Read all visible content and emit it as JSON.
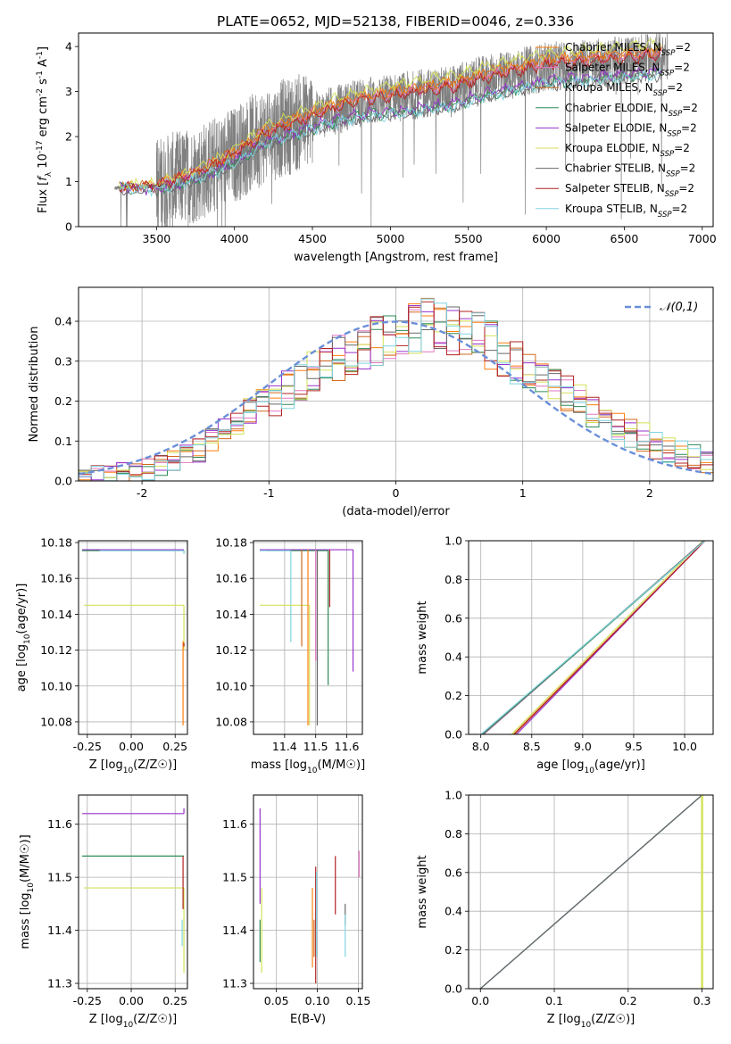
{
  "figure_title": "PLATE=0652, MJD=52138, FIBERID=0046, z=0.336",
  "colors": {
    "chabrier_miles": "#ff7f0e",
    "salpeter_miles": "#e377c2",
    "kroupa_miles": "#d2691e",
    "chabrier_elodie": "#2e8b57",
    "salpeter_elodie": "#9932cc",
    "kroupa_elodie": "#d4e157",
    "chabrier_stelib": "#696969",
    "salpeter_stelib": "#b22222",
    "kroupa_stelib": "#80d4e0",
    "data_spectrum": "#808080",
    "normal_curve": "#6a8fd8",
    "grid": "#b0b0b0"
  },
  "legend_entries": [
    "Chabrier MILES, N_SSP=2",
    "Salpeter MILES, N_SSP=2",
    "Kroupa MILES, N_SSP=2",
    "Chabrier ELODIE, N_SSP=2",
    "Salpeter ELODIE, N_SSP=2",
    "Kroupa ELODIE, N_SSP=2",
    "Chabrier STELIB, N_SSP=2",
    "Salpeter STELIB, N_SSP=2",
    "Kroupa STELIB, N_SSP=2"
  ],
  "chart_data": [
    {
      "id": "spectrum",
      "type": "line",
      "title": "PLATE=0652, MJD=52138, FIBERID=0046, z=0.336",
      "xlabel": "wavelength [Angstrom, rest frame]",
      "ylabel": "Flux [f_λ 10^-17 erg cm^-2 s^-1 A^-1]",
      "xlim": [
        3000,
        7070
      ],
      "ylim": [
        0,
        4.3
      ],
      "xticks": [
        3500,
        4000,
        4500,
        5000,
        5500,
        6000,
        6500,
        7000
      ],
      "yticks": [
        0,
        1,
        2,
        3,
        4
      ],
      "grid": false,
      "legend": "upper right",
      "data_range": [
        3230,
        6780
      ],
      "continuum": {
        "x": [
          3230,
          3300,
          3500,
          3700,
          3900,
          4000,
          4200,
          4400,
          4600,
          4800,
          5000,
          5200,
          5400,
          5600,
          5800,
          6000,
          6200,
          6400,
          6600,
          6780
        ],
        "y": [
          0.85,
          0.88,
          0.9,
          1.1,
          1.4,
          1.6,
          2.05,
          2.3,
          2.55,
          2.75,
          2.85,
          2.95,
          3.05,
          3.25,
          3.4,
          3.55,
          3.6,
          3.65,
          3.72,
          3.78
        ]
      },
      "model_offsets": [
        0.15,
        0.1,
        0.15,
        -0.35,
        -0.3,
        0.3,
        -0.4,
        0.05,
        -0.38
      ]
    },
    {
      "id": "residuals",
      "type": "step",
      "xlabel": "(data-model)/error",
      "ylabel": "Normed distribution",
      "xlim": [
        -2.5,
        2.5
      ],
      "ylim": [
        0,
        0.485
      ],
      "xticks": [
        -2,
        -1,
        0,
        1,
        2
      ],
      "yticks": [
        0.0,
        0.1,
        0.2,
        0.3,
        0.4
      ],
      "grid": true,
      "legend": "upper right",
      "gaussian_label": "N(0,1)",
      "bins": 50,
      "bin_edges": [
        -2.5,
        2.5
      ],
      "profile_centers": [
        -2.45,
        -2.35,
        -2.25,
        -2.15,
        -2.05,
        -1.95,
        -1.85,
        -1.75,
        -1.65,
        -1.55,
        -1.45,
        -1.35,
        -1.25,
        -1.15,
        -1.05,
        -0.95,
        -0.85,
        -0.75,
        -0.65,
        -0.55,
        -0.45,
        -0.35,
        -0.25,
        -0.15,
        -0.05,
        0.05,
        0.15,
        0.25,
        0.35,
        0.45,
        0.55,
        0.65,
        0.75,
        0.85,
        0.95,
        1.05,
        1.15,
        1.25,
        1.35,
        1.45,
        1.55,
        1.65,
        1.75,
        1.85,
        1.95,
        2.05,
        2.15,
        2.25,
        2.35,
        2.45
      ],
      "profile_values": [
        0.01,
        0.02,
        0.02,
        0.02,
        0.03,
        0.03,
        0.04,
        0.05,
        0.06,
        0.08,
        0.1,
        0.12,
        0.14,
        0.17,
        0.19,
        0.21,
        0.23,
        0.25,
        0.27,
        0.29,
        0.31,
        0.32,
        0.34,
        0.35,
        0.36,
        0.37,
        0.38,
        0.39,
        0.39,
        0.38,
        0.37,
        0.36,
        0.34,
        0.32,
        0.3,
        0.28,
        0.26,
        0.24,
        0.22,
        0.2,
        0.18,
        0.16,
        0.14,
        0.12,
        0.11,
        0.09,
        0.08,
        0.07,
        0.06,
        0.05
      ]
    },
    {
      "id": "age_vs_Z",
      "type": "errorbar",
      "xlabel": "Z [log10(Z/Z☉)]",
      "ylabel": "age [log10(age/yr)]",
      "xlim": [
        -0.3,
        0.32
      ],
      "ylim": [
        10.073,
        10.181
      ],
      "xticks": [
        -0.25,
        0.0,
        0.25
      ],
      "yticks": [
        10.08,
        10.1,
        10.12,
        10.14,
        10.16,
        10.18
      ],
      "grid": true,
      "points": [
        {
          "model": "Salpeter ELODIE",
          "x": 0.3,
          "xerr_left": 0.58,
          "y": 10.176,
          "yerr_low": 0.0,
          "yerr_high": 0.0
        },
        {
          "model": "Chabrier ELODIE",
          "x": 0.3,
          "xerr_left": 0.58,
          "y": 10.1755,
          "yerr_low": 0.001,
          "yerr_high": 0.0
        },
        {
          "model": "Kroupa STELIB",
          "x": 0.3,
          "xerr_left": 0.48,
          "y": 10.1755,
          "yerr_low": 0.002,
          "yerr_high": 0.0
        },
        {
          "model": "Kroupa ELODIE",
          "x": 0.3,
          "xerr_left": 0.57,
          "y": 10.145,
          "yerr_low": 0.025,
          "yerr_high": 0.0
        },
        {
          "model": "Chabrier MILES",
          "x": 0.295,
          "xerr_left": 0.0,
          "y": 10.125,
          "yerr_low": 0.047,
          "yerr_high": 0.0
        },
        {
          "model": "Salpeter STELIB",
          "x": 0.3,
          "xerr_left": 0.0,
          "y": 10.124,
          "yerr_low": 0.002,
          "yerr_high": 0.0
        }
      ]
    },
    {
      "id": "age_vs_mass",
      "type": "errorbar",
      "xlabel": "mass [log10(M/M☉)]",
      "ylabel": "",
      "xlim": [
        11.3,
        11.65
      ],
      "ylim": [
        10.073,
        10.181
      ],
      "xticks": [
        11.4,
        11.5,
        11.6
      ],
      "yticks": [
        10.08,
        10.1,
        10.12,
        10.14,
        10.16,
        10.18
      ],
      "grid": true,
      "points": [
        {
          "model": "Salpeter ELODIE",
          "x": 11.62,
          "xerr_left": 0.3,
          "y": 10.176,
          "yerr_low": 0.068
        },
        {
          "model": "Chabrier ELODIE",
          "x": 11.54,
          "xerr_left": 0.2,
          "y": 10.1755,
          "yerr_low": 0.075
        },
        {
          "model": "Kroupa STELIB",
          "x": 11.42,
          "xerr_left": 0.1,
          "y": 10.1755,
          "yerr_low": 0.051
        },
        {
          "model": "Kroupa ELODIE",
          "x": 11.48,
          "xerr_left": 0.16,
          "y": 10.145,
          "yerr_low": 0.067
        },
        {
          "model": "Chabrier MILES",
          "x": 11.475,
          "xerr_left": 0.0,
          "y": 10.176,
          "yerr_low": 0.098
        },
        {
          "model": "Salpeter STELIB",
          "x": 11.545,
          "xerr_left": 0.0,
          "y": 10.176,
          "yerr_low": 0.032
        },
        {
          "model": "Salpeter MILES",
          "x": 11.5,
          "xerr_left": 0.0,
          "y": 10.176,
          "yerr_low": 0.062
        },
        {
          "model": "Chabrier STELIB",
          "x": 11.505,
          "xerr_left": 0.0,
          "y": 10.176,
          "yerr_low": 0.098
        },
        {
          "model": "Kroupa MILES",
          "x": 11.455,
          "xerr_left": 0.0,
          "y": 10.176,
          "yerr_low": 0.054
        }
      ]
    },
    {
      "id": "mass_weight_vs_age",
      "type": "line",
      "xlabel": "age [log10(age/yr)]",
      "ylabel": "mass weight",
      "xlim": [
        7.88,
        10.28
      ],
      "ylim": [
        0.0,
        1.0
      ],
      "xticks": [
        8.0,
        8.5,
        9.0,
        9.5,
        10.0
      ],
      "yticks": [
        0.0,
        0.2,
        0.4,
        0.6,
        0.8,
        1.0
      ],
      "grid": true,
      "series": [
        {
          "model": "Chabrier MILES",
          "x": [
            8.02,
            10.19
          ],
          "y": [
            0.0,
            1.0
          ]
        },
        {
          "model": "Salpeter MILES",
          "x": [
            8.03,
            10.19
          ],
          "y": [
            0.0,
            1.0
          ]
        },
        {
          "model": "Kroupa MILES",
          "x": [
            8.32,
            10.2
          ],
          "y": [
            0.0,
            1.0
          ]
        },
        {
          "model": "Chabrier ELODIE",
          "x": [
            8.02,
            10.2
          ],
          "y": [
            0.0,
            1.0
          ]
        },
        {
          "model": "Salpeter ELODIE",
          "x": [
            8.35,
            10.2
          ],
          "y": [
            0.0,
            1.0
          ]
        },
        {
          "model": "Kroupa ELODIE",
          "x": [
            8.3,
            10.18
          ],
          "y": [
            0.0,
            1.0
          ]
        },
        {
          "model": "Chabrier STELIB",
          "x": [
            8.01,
            10.19
          ],
          "y": [
            0.0,
            1.0
          ]
        },
        {
          "model": "Salpeter STELIB",
          "x": [
            8.33,
            10.2
          ],
          "y": [
            0.0,
            1.0
          ]
        },
        {
          "model": "Kroupa STELIB",
          "x": [
            8.0,
            10.2
          ],
          "y": [
            0.0,
            1.0
          ]
        }
      ]
    },
    {
      "id": "mass_vs_Z",
      "type": "errorbar",
      "xlabel": "Z [log10(Z/Z☉)]",
      "ylabel": "mass [log10(M/M☉)]",
      "xlim": [
        -0.3,
        0.32
      ],
      "ylim": [
        11.29,
        11.655
      ],
      "xticks": [
        -0.25,
        0.0,
        0.25
      ],
      "yticks": [
        11.3,
        11.4,
        11.5,
        11.6
      ],
      "grid": true,
      "points": [
        {
          "model": "Salpeter ELODIE",
          "x": 0.3,
          "xerr_left": 0.58,
          "y": 11.62,
          "yerr_low": 0.0,
          "yerr_high": 0.01
        },
        {
          "model": "Chabrier ELODIE",
          "x": 0.3,
          "xerr_left": 0.58,
          "y": 11.54,
          "yerr_low": 0.0,
          "yerr_high": 0.0
        },
        {
          "model": "Kroupa ELODIE",
          "x": 0.3,
          "xerr_left": 0.57,
          "y": 11.48,
          "yerr_low": 0.16,
          "yerr_high": 0.0
        },
        {
          "model": "Salpeter STELIB",
          "x": 0.295,
          "xerr_left": 0.0,
          "y": 11.5,
          "yerr_low": 0.06,
          "yerr_high": 0.04
        },
        {
          "model": "Kroupa STELIB",
          "x": 0.29,
          "xerr_left": 0.0,
          "y": 11.42,
          "yerr_low": 0.05,
          "yerr_high": 0.0
        }
      ]
    },
    {
      "id": "mass_vs_ebv",
      "type": "errorbar",
      "xlabel": "E(B-V)",
      "ylabel": "",
      "xlim": [
        0.022,
        0.155
      ],
      "ylim": [
        11.29,
        11.655
      ],
      "xticks": [
        0.05,
        0.1,
        0.15
      ],
      "yticks": [
        11.3,
        11.4,
        11.5,
        11.6
      ],
      "grid": true,
      "points": [
        {
          "model": "Salpeter ELODIE",
          "x": 0.03,
          "ylow": 11.45,
          "yhigh": 11.63
        },
        {
          "model": "Kroupa ELODIE",
          "x": 0.032,
          "ylow": 11.32,
          "yhigh": 11.48
        },
        {
          "model": "Chabrier ELODIE",
          "x": 0.03,
          "ylow": 11.34,
          "yhigh": 11.42
        },
        {
          "model": "Chabrier MILES",
          "x": 0.094,
          "ylow": 11.33,
          "yhigh": 11.48
        },
        {
          "model": "Kroupa MILES",
          "x": 0.096,
          "ylow": 11.35,
          "yhigh": 11.42
        },
        {
          "model": "Salpeter STELIB",
          "x": 0.098,
          "ylow": 11.3,
          "yhigh": 11.52
        },
        {
          "model": "Kroupa STELIB",
          "x": 0.099,
          "ylow": 11.35,
          "yhigh": 11.51
        },
        {
          "model": "Salpeter STELIB",
          "x": 0.122,
          "ylow": 11.43,
          "yhigh": 11.54
        },
        {
          "model": "Chabrier STELIB",
          "x": 0.134,
          "ylow": 11.41,
          "yhigh": 11.45
        },
        {
          "model": "Kroupa STELIB",
          "x": 0.134,
          "ylow": 11.35,
          "yhigh": 11.43
        },
        {
          "model": "Salpeter MILES",
          "x": 0.151,
          "ylow": 11.5,
          "yhigh": 11.55
        }
      ]
    },
    {
      "id": "mass_weight_vs_Z",
      "type": "line",
      "xlabel": "Z [log10(Z/Z☉)]",
      "ylabel": "mass weight",
      "xlim": [
        -0.016,
        0.315
      ],
      "ylim": [
        0.0,
        1.0
      ],
      "xticks": [
        0.0,
        0.1,
        0.2,
        0.3
      ],
      "yticks": [
        0.0,
        0.2,
        0.4,
        0.6,
        0.8,
        1.0
      ],
      "grid": true,
      "series": [
        {
          "model": "Kroupa STELIB",
          "x": [
            0.0,
            0.3
          ],
          "y": [
            0.0,
            1.0
          ]
        },
        {
          "model": "Chabrier STELIB",
          "x": [
            0.0,
            0.3
          ],
          "y": [
            0.0,
            1.0
          ]
        },
        {
          "model": "Kroupa ELODIE",
          "x": [
            0.3,
            0.3
          ],
          "y": [
            0.0,
            1.0
          ]
        }
      ]
    }
  ]
}
